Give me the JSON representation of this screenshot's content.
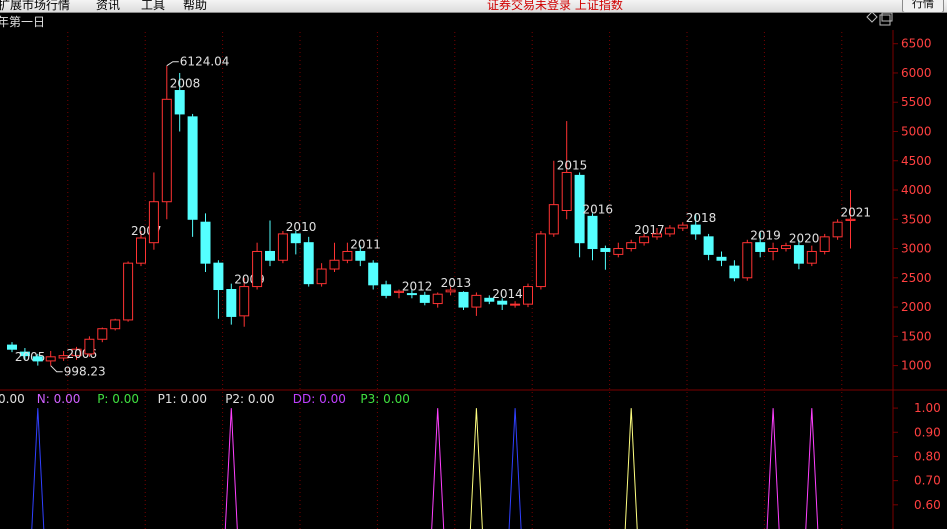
{
  "menu": {
    "items": [
      "行情",
      "资讯",
      "工具",
      "帮助"
    ],
    "item_prefix_fragment": "扩展市场行情",
    "notice": "证券交易未登录 上证指数",
    "quote_button": "行情"
  },
  "chart_header": {
    "period_label": "年第一日",
    "toggle_icon": "diamond-icon",
    "window_icon": "restore-icon"
  },
  "colors": {
    "background": "#000000",
    "grid": "#7a0000",
    "up": "#ff3333",
    "down": "#54ffff",
    "text": "#e0e0e0",
    "tick": "#ff4040",
    "indicator_red": "#ff5050",
    "indicator_n": "#d060ff",
    "indicator_p": "#40e040",
    "indicator_dd": "#c040ff",
    "indicator_p3": "#40e040"
  },
  "chart_data": [
    {
      "type": "candlestick",
      "title": "",
      "ylim": [
        600,
        6700
      ],
      "yticks": [
        1000,
        1500,
        2000,
        2500,
        3000,
        3500,
        4000,
        4500,
        5000,
        5500,
        6000,
        6500
      ],
      "grid": "vertical dotted",
      "candles": [
        {
          "label": "",
          "o": 1350,
          "c": 1280,
          "h": 1400,
          "l": 1230
        },
        {
          "label": "2005",
          "o": 1230,
          "c": 1170,
          "h": 1300,
          "l": 1100
        },
        {
          "label": "",
          "o": 1150,
          "c": 1080,
          "h": 1200,
          "l": 1000
        },
        {
          "label": "",
          "o": 1080,
          "c": 1150,
          "h": 1250,
          "l": 998
        },
        {
          "label": "",
          "o": 1130,
          "c": 1170,
          "h": 1250,
          "l": 1080
        },
        {
          "label": "2006",
          "o": 1170,
          "c": 1280,
          "h": 1320,
          "l": 1100
        },
        {
          "label": "",
          "o": 1200,
          "c": 1450,
          "h": 1500,
          "l": 1150
        },
        {
          "label": "",
          "o": 1450,
          "c": 1630,
          "h": 1650,
          "l": 1400
        },
        {
          "label": "",
          "o": 1630,
          "c": 1780,
          "h": 1800,
          "l": 1600
        },
        {
          "label": "",
          "o": 1780,
          "c": 2750,
          "h": 2780,
          "l": 1750
        },
        {
          "label": "2007",
          "o": 2750,
          "c": 3180,
          "h": 3300,
          "l": 2700
        },
        {
          "label": "",
          "o": 3100,
          "c": 3800,
          "h": 4300,
          "l": 2980
        },
        {
          "label": "",
          "o": 3800,
          "c": 5550,
          "h": 6124.04,
          "l": 3500
        },
        {
          "label": "2008",
          "o": 5700,
          "c": 5300,
          "h": 6000,
          "l": 5000
        },
        {
          "label": "",
          "o": 5250,
          "c": 3500,
          "h": 5300,
          "l": 3200
        },
        {
          "label": "",
          "o": 3450,
          "c": 2750,
          "h": 3600,
          "l": 2600
        },
        {
          "label": "",
          "o": 2750,
          "c": 2300,
          "h": 2800,
          "l": 1800
        },
        {
          "label": "",
          "o": 2300,
          "c": 1840,
          "h": 2400,
          "l": 1700
        },
        {
          "label": "2009",
          "o": 1850,
          "c": 2350,
          "h": 2500,
          "l": 1664
        },
        {
          "label": "",
          "o": 2350,
          "c": 2950,
          "h": 3100,
          "l": 2300
        },
        {
          "label": "",
          "o": 2950,
          "c": 2800,
          "h": 3480,
          "l": 2700
        },
        {
          "label": "",
          "o": 2800,
          "c": 3250,
          "h": 3300,
          "l": 2750
        },
        {
          "label": "2010",
          "o": 3250,
          "c": 3100,
          "h": 3300,
          "l": 2900
        },
        {
          "label": "",
          "o": 3100,
          "c": 2400,
          "h": 3200,
          "l": 2350
        },
        {
          "label": "",
          "o": 2400,
          "c": 2650,
          "h": 2750,
          "l": 2350
        },
        {
          "label": "",
          "o": 2650,
          "c": 2800,
          "h": 3100,
          "l": 2600
        },
        {
          "label": "",
          "o": 2800,
          "c": 2950,
          "h": 3100,
          "l": 2750
        },
        {
          "label": "2011",
          "o": 2950,
          "c": 2800,
          "h": 3050,
          "l": 2700
        },
        {
          "label": "",
          "o": 2750,
          "c": 2380,
          "h": 2800,
          "l": 2300
        },
        {
          "label": "",
          "o": 2380,
          "c": 2200,
          "h": 2450,
          "l": 2150
        },
        {
          "label": "",
          "o": 2250,
          "c": 2270,
          "h": 2300,
          "l": 2150
        },
        {
          "label": "2012",
          "o": 2230,
          "c": 2220,
          "h": 2300,
          "l": 2150
        },
        {
          "label": "",
          "o": 2200,
          "c": 2080,
          "h": 2260,
          "l": 2030
        },
        {
          "label": "",
          "o": 2060,
          "c": 2220,
          "h": 2250,
          "l": 1990
        },
        {
          "label": "2013",
          "o": 2260,
          "c": 2290,
          "h": 2350,
          "l": 2200
        },
        {
          "label": "",
          "o": 2250,
          "c": 2000,
          "h": 2270,
          "l": 1950
        },
        {
          "label": "",
          "o": 2000,
          "c": 2200,
          "h": 2250,
          "l": 1849
        },
        {
          "label": "",
          "o": 2150,
          "c": 2100,
          "h": 2200,
          "l": 2050
        },
        {
          "label": "2014",
          "o": 2100,
          "c": 2050,
          "h": 2150,
          "l": 1950
        },
        {
          "label": "",
          "o": 2050,
          "c": 2050,
          "h": 2100,
          "l": 1990
        },
        {
          "label": "",
          "o": 2050,
          "c": 2350,
          "h": 2400,
          "l": 2000
        },
        {
          "label": "",
          "o": 2350,
          "c": 3250,
          "h": 3300,
          "l": 2300
        },
        {
          "label": "",
          "o": 3250,
          "c": 3750,
          "h": 4500,
          "l": 3200
        },
        {
          "label": "2015",
          "o": 3650,
          "c": 4300,
          "h": 5178,
          "l": 3500
        },
        {
          "label": "",
          "o": 4250,
          "c": 3100,
          "h": 4300,
          "l": 2850
        },
        {
          "label": "2016",
          "o": 3550,
          "c": 3000,
          "h": 3600,
          "l": 2800
        },
        {
          "label": "",
          "o": 3000,
          "c": 2950,
          "h": 3050,
          "l": 2638
        },
        {
          "label": "",
          "o": 2900,
          "c": 3000,
          "h": 3100,
          "l": 2850
        },
        {
          "label": "",
          "o": 3000,
          "c": 3100,
          "h": 3150,
          "l": 2950
        },
        {
          "label": "2017",
          "o": 3100,
          "c": 3200,
          "h": 3250,
          "l": 3050
        },
        {
          "label": "",
          "o": 3200,
          "c": 3250,
          "h": 3350,
          "l": 3150
        },
        {
          "label": "",
          "o": 3250,
          "c": 3350,
          "h": 3400,
          "l": 3200
        },
        {
          "label": "",
          "o": 3350,
          "c": 3400,
          "h": 3450,
          "l": 3300
        },
        {
          "label": "2018",
          "o": 3400,
          "c": 3250,
          "h": 3587,
          "l": 3150
        },
        {
          "label": "",
          "o": 3200,
          "c": 2900,
          "h": 3250,
          "l": 2800
        },
        {
          "label": "",
          "o": 2850,
          "c": 2800,
          "h": 2950,
          "l": 2700
        },
        {
          "label": "",
          "o": 2700,
          "c": 2500,
          "h": 2800,
          "l": 2440
        },
        {
          "label": "",
          "o": 2500,
          "c": 3100,
          "h": 3150,
          "l": 2450
        },
        {
          "label": "2019",
          "o": 3100,
          "c": 2950,
          "h": 3288,
          "l": 2850
        },
        {
          "label": "",
          "o": 2950,
          "c": 3000,
          "h": 3100,
          "l": 2800
        },
        {
          "label": "",
          "o": 3000,
          "c": 3050,
          "h": 3100,
          "l": 2950
        },
        {
          "label": "2020",
          "o": 3050,
          "c": 2750,
          "h": 3150,
          "l": 2646
        },
        {
          "label": "",
          "o": 2750,
          "c": 2950,
          "h": 3050,
          "l": 2700
        },
        {
          "label": "",
          "o": 2950,
          "c": 3200,
          "h": 3250,
          "l": 2900
        },
        {
          "label": "",
          "o": 3200,
          "c": 3450,
          "h": 3500,
          "l": 3150
        },
        {
          "label": "2021",
          "o": 3480,
          "c": 3500,
          "h": 4000,
          "l": 3000
        }
      ],
      "annotations": [
        {
          "text": "6124.04",
          "value": 6124.04,
          "candle": 12
        },
        {
          "text": "998.23",
          "value": 998.23,
          "candle": 3
        }
      ]
    },
    {
      "type": "line",
      "title": "",
      "ylim": [
        0.5,
        1.05
      ],
      "yticks": [
        "1.00",
        "0.90",
        "0.80",
        "0.70",
        "0.60"
      ],
      "legend": [
        {
          "name": "",
          "value": "0.00"
        },
        {
          "name": "N:",
          "value": "0.00"
        },
        {
          "name": "P:",
          "value": "0.00"
        },
        {
          "name": "P1:",
          "value": "0.00"
        },
        {
          "name": "P2:",
          "value": "0.00"
        },
        {
          "name": "DD:",
          "value": "0.00"
        },
        {
          "name": "P3:",
          "value": "0.00"
        }
      ],
      "series": [
        {
          "spike_at_candle": 2,
          "peak": 1.0,
          "color": "#3040ff"
        },
        {
          "spike_at_candle": 17,
          "peak": 1.0,
          "color": "#ff40ff"
        },
        {
          "spike_at_candle": 33,
          "peak": 1.0,
          "color": "#ff40ff"
        },
        {
          "spike_at_candle": 36,
          "peak": 1.0,
          "color": "#ffff80"
        },
        {
          "spike_at_candle": 39,
          "peak": 1.0,
          "color": "#3040ff"
        },
        {
          "spike_at_candle": 48,
          "peak": 1.0,
          "color": "#ffff80"
        },
        {
          "spike_at_candle": 59,
          "peak": 1.0,
          "color": "#ff40ff"
        },
        {
          "spike_at_candle": 62,
          "peak": 1.0,
          "color": "#ff40ff"
        }
      ]
    }
  ]
}
